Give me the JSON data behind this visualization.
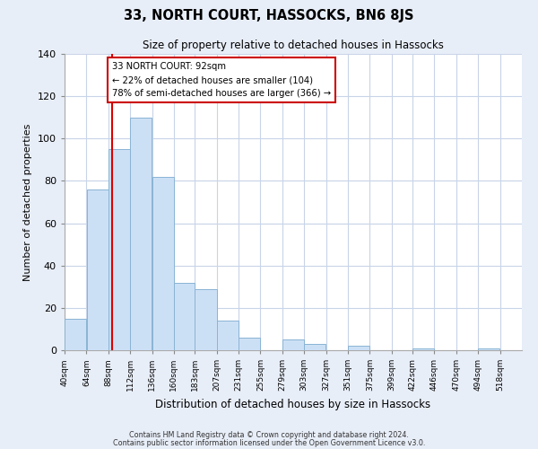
{
  "title": "33, NORTH COURT, HASSOCKS, BN6 8JS",
  "subtitle": "Size of property relative to detached houses in Hassocks",
  "xlabel": "Distribution of detached houses by size in Hassocks",
  "ylabel": "Number of detached properties",
  "bar_left_edges": [
    40,
    64,
    88,
    112,
    136,
    160,
    183,
    207,
    231,
    255,
    279,
    303,
    327,
    351,
    375,
    399,
    422,
    446,
    470,
    494
  ],
  "bar_heights": [
    15,
    76,
    95,
    110,
    82,
    32,
    29,
    14,
    6,
    0,
    5,
    3,
    0,
    2,
    0,
    0,
    1,
    0,
    0,
    1
  ],
  "bar_widths": [
    24,
    24,
    24,
    24,
    24,
    23,
    24,
    24,
    24,
    24,
    24,
    24,
    24,
    24,
    24,
    23,
    24,
    24,
    24,
    24
  ],
  "tick_labels": [
    "40sqm",
    "64sqm",
    "88sqm",
    "112sqm",
    "136sqm",
    "160sqm",
    "183sqm",
    "207sqm",
    "231sqm",
    "255sqm",
    "279sqm",
    "303sqm",
    "327sqm",
    "351sqm",
    "375sqm",
    "399sqm",
    "422sqm",
    "446sqm",
    "470sqm",
    "494sqm",
    "518sqm"
  ],
  "tick_positions": [
    40,
    64,
    88,
    112,
    136,
    160,
    183,
    207,
    231,
    255,
    279,
    303,
    327,
    351,
    375,
    399,
    422,
    446,
    470,
    494,
    518
  ],
  "bar_color": "#cce0f5",
  "bar_edge_color": "#8ab4d4",
  "vline_x": 92,
  "vline_color": "#dd0000",
  "ylim": [
    0,
    140
  ],
  "xlim": [
    40,
    542
  ],
  "annotation_title": "33 NORTH COURT: 92sqm",
  "annotation_line1": "← 22% of detached houses are smaller (104)",
  "annotation_line2": "78% of semi-detached houses are larger (366) →",
  "footnote1": "Contains HM Land Registry data © Crown copyright and database right 2024.",
  "footnote2": "Contains public sector information licensed under the Open Government Licence v3.0.",
  "background_color": "#e8eef8",
  "plot_bg_color": "#ffffff",
  "grid_color": "#c8d4e8"
}
